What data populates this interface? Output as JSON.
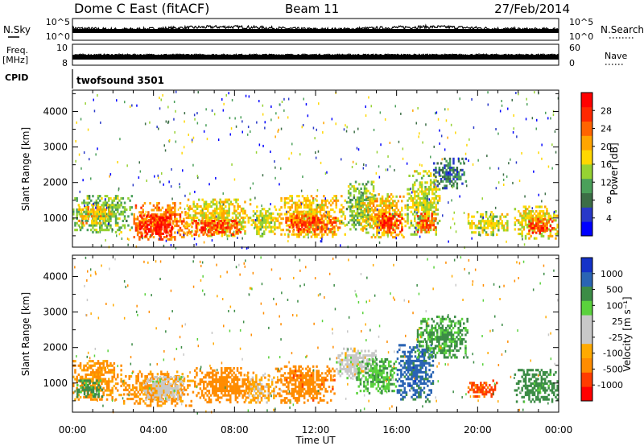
{
  "header": {
    "station": "Dome C East (fitACF)",
    "beam": "Beam 11",
    "date": "27/Feb/2014"
  },
  "strips": {
    "nsky_label": "N.Sky",
    "nsky_ticks": [
      "10^5",
      "10^0"
    ],
    "nsearch_label": "N.Search",
    "nsearch_ticks": [
      "10^5",
      "10^0"
    ],
    "freq_label": "Freq.",
    "freq_unit": "[MHz]",
    "freq_ticks": [
      "10",
      "8"
    ],
    "nave_label": "Nave",
    "nave_ticks": [
      "60",
      "0"
    ],
    "cpid_label": "CPID",
    "cpid_value": "twofsound 3501"
  },
  "x_axis": {
    "label": "Time UT",
    "tick_labels": [
      "00:00",
      "04:00",
      "08:00",
      "12:00",
      "16:00",
      "20:00",
      "00:00"
    ],
    "range_hours": [
      0,
      24
    ]
  },
  "colors": {
    "power_scale": [
      "#0000ff",
      "#2838c8",
      "#3c6e46",
      "#4ba05a",
      "#96d232",
      "#ffd700",
      "#ffa500",
      "#ff6400",
      "#ff2800",
      "#ff0000"
    ],
    "velocity_scale": [
      "#ff0000",
      "#ff3c00",
      "#ff8c00",
      "#ffaa00",
      "#c8c8c8",
      "#c8c8c8",
      "#5ad23c",
      "#3c8c46",
      "#2a64b4",
      "#1432c8"
    ]
  },
  "chart_data": [
    {
      "type": "heatmap",
      "name": "power-panel",
      "xlabel": "Time UT",
      "ylabel": "Slant Range [km]",
      "y_ticks": [
        "1000",
        "2000",
        "3000",
        "4000"
      ],
      "ylim": [
        180,
        4600
      ],
      "xlim": [
        0,
        24
      ],
      "colorbar": {
        "label": "Power [dB]",
        "ticks": [
          "4",
          "8",
          "12",
          "16",
          "20",
          "24",
          "28"
        ],
        "range": [
          0,
          32
        ]
      },
      "regions": [
        {
          "t": [
            0.0,
            3.0
          ],
          "r": [
            550,
            1650
          ],
          "v": 13
        },
        {
          "t": [
            0.3,
            2.0
          ],
          "r": [
            800,
            1400
          ],
          "v": 19
        },
        {
          "t": [
            3.0,
            5.8
          ],
          "r": [
            380,
            1450
          ],
          "v": 23
        },
        {
          "t": [
            3.3,
            5.0
          ],
          "r": [
            480,
            1100
          ],
          "v": 29
        },
        {
          "t": [
            5.5,
            8.8
          ],
          "r": [
            450,
            1550
          ],
          "v": 18
        },
        {
          "t": [
            5.8,
            8.3
          ],
          "r": [
            500,
            950
          ],
          "v": 26
        },
        {
          "t": [
            8.8,
            10.0
          ],
          "r": [
            450,
            1350
          ],
          "v": 16
        },
        {
          "t": [
            10.0,
            13.5
          ],
          "r": [
            450,
            1650
          ],
          "v": 19
        },
        {
          "t": [
            10.5,
            13.0
          ],
          "r": [
            600,
            1100
          ],
          "v": 26
        },
        {
          "t": [
            13.5,
            15.0
          ],
          "r": [
            650,
            2050
          ],
          "v": 13
        },
        {
          "t": [
            14.2,
            16.5
          ],
          "r": [
            400,
            1700
          ],
          "v": 19
        },
        {
          "t": [
            15.0,
            16.3
          ],
          "r": [
            550,
            1150
          ],
          "v": 27
        },
        {
          "t": [
            16.5,
            18.2
          ],
          "r": [
            500,
            2350
          ],
          "v": 16
        },
        {
          "t": [
            17.0,
            18.0
          ],
          "r": [
            600,
            1150
          ],
          "v": 25
        },
        {
          "t": [
            17.8,
            19.5
          ],
          "r": [
            1800,
            2700
          ],
          "v": 8
        },
        {
          "t": [
            19.5,
            21.5
          ],
          "r": [
            500,
            1200
          ],
          "v": 16
        },
        {
          "t": [
            21.8,
            24.0
          ],
          "r": [
            400,
            1350
          ],
          "v": 17
        },
        {
          "t": [
            22.5,
            23.8
          ],
          "r": [
            550,
            1000
          ],
          "v": 26
        }
      ],
      "scatter_density": 0.004
    },
    {
      "type": "heatmap",
      "name": "velocity-panel",
      "xlabel": "Time UT",
      "ylabel": "Slant Range [km]",
      "y_ticks": [
        "1000",
        "2000",
        "3000",
        "4000"
      ],
      "ylim": [
        180,
        4600
      ],
      "xlim": [
        0,
        24
      ],
      "colorbar": {
        "label": "Velocity [m s⁻¹]",
        "ticks": [
          "1000",
          "500",
          "100",
          "25",
          "-25",
          "-100",
          "-500",
          "-1000"
        ],
        "range": [
          -1000,
          1000
        ]
      },
      "regions": [
        {
          "t": [
            0.0,
            2.5
          ],
          "r": [
            500,
            1650
          ],
          "v": -120
        },
        {
          "t": [
            0.2,
            1.5
          ],
          "r": [
            600,
            1100
          ],
          "v": 150
        },
        {
          "t": [
            2.5,
            6.0
          ],
          "r": [
            350,
            1350
          ],
          "v": -140
        },
        {
          "t": [
            3.5,
            5.5
          ],
          "r": [
            500,
            1200
          ],
          "v": 0
        },
        {
          "t": [
            6.0,
            9.0
          ],
          "r": [
            450,
            1450
          ],
          "v": -250
        },
        {
          "t": [
            8.5,
            10.0
          ],
          "r": [
            450,
            1250
          ],
          "v": -60
        },
        {
          "t": [
            10.0,
            13.0
          ],
          "r": [
            400,
            1500
          ],
          "v": -350
        },
        {
          "t": [
            13.0,
            15.0
          ],
          "r": [
            1100,
            2000
          ],
          "v": 0
        },
        {
          "t": [
            14.0,
            16.0
          ],
          "r": [
            700,
            1700
          ],
          "v": 90
        },
        {
          "t": [
            16.0,
            17.8
          ],
          "r": [
            450,
            2100
          ],
          "v": 700
        },
        {
          "t": [
            17.0,
            19.5
          ],
          "r": [
            1700,
            2900
          ],
          "v": 120
        },
        {
          "t": [
            19.5,
            21.0
          ],
          "r": [
            600,
            1100
          ],
          "v": -700
        },
        {
          "t": [
            21.8,
            24.0
          ],
          "r": [
            450,
            1400
          ],
          "v": 200
        }
      ],
      "scatter_density": 0.003
    }
  ]
}
